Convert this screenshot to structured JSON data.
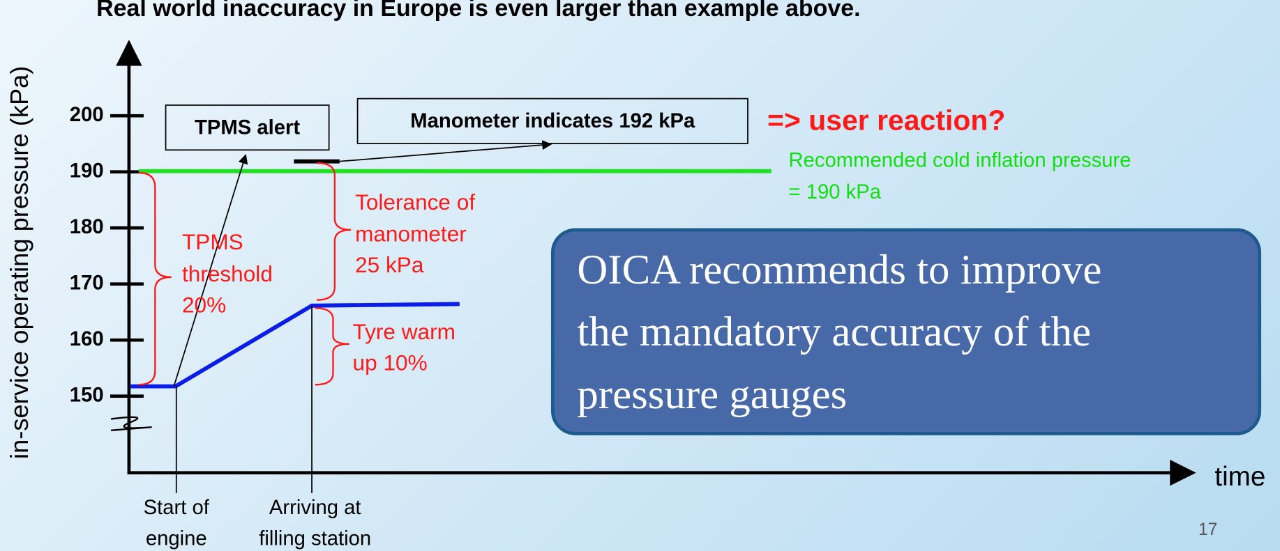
{
  "title": "Real world inaccuracy in Europe is even larger than example above.",
  "y_axis": {
    "label": "in-service operating pressure (kPa)",
    "ticks": [
      "200",
      "190",
      "180",
      "170",
      "160",
      "150"
    ]
  },
  "x_axis": {
    "label": "time",
    "markers": [
      [
        "Start of",
        "engine"
      ],
      [
        "Arriving at",
        "filling station"
      ]
    ]
  },
  "boxes": {
    "tpms_alert": "TPMS alert",
    "manometer": "Manometer indicates 192 kPa"
  },
  "user_reaction": "=> user reaction?",
  "recommended": [
    "Recommended cold inflation pressure",
    "= 190 kPa"
  ],
  "tpms_threshold": [
    "TPMS",
    "threshold",
    "20%"
  ],
  "tolerance": [
    "Tolerance of",
    "manometer",
    "25 kPa"
  ],
  "tyre_warm": [
    "Tyre warm",
    "up 10%"
  ],
  "callout": [
    "OICA recommends to improve",
    "the mandatory accuracy of the",
    "pressure gauges"
  ],
  "page_number": "17"
}
